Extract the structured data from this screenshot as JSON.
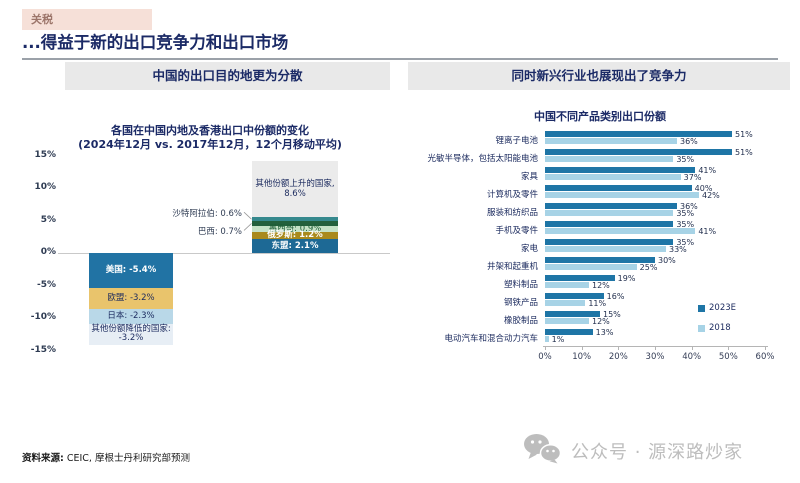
{
  "page": {
    "tag": "关税",
    "title": "...得益于新的出口竞争力和出口市场",
    "source_label": "资料来源:",
    "source_text": " CEIC, 摩根士丹利研究部预测",
    "watermark": "公众号 · 源深路炒家"
  },
  "theme": {
    "navy": "#1b2a66",
    "tag_bg": "#f6e0d8",
    "tag_text": "#9c756a",
    "panel_header_bg": "#e9e9e9",
    "dark_blue": "#1e75a6",
    "light_blue": "#a7d3e6",
    "watermark_gray": "#bdbdbd"
  },
  "left_panel": {
    "header": "中国的出口目的地更为分散"
  },
  "right_panel": {
    "header": "同时新兴行业也展现出了竞争力"
  },
  "chart_data": [
    {
      "type": "bar",
      "subtype": "diverging-stacked-column",
      "title": "各国在中国内地及香港出口中份额的变化",
      "subtitle": "(2024年12月 vs. 2017年12月，12个月移动平均)",
      "unit": "percentage-points",
      "ylim": [
        -15,
        15
      ],
      "yticks": [
        "15%",
        "10%",
        "5%",
        "0%",
        "-5%",
        "-10%",
        "-15%"
      ],
      "grid": "zero-line-only",
      "bars": [
        {
          "name": "share-declining",
          "direction": "down",
          "segments": [
            {
              "label": "美国: -5.4%",
              "value": -5.4,
              "color": "#2173a4",
              "text_color": "#ffffff",
              "bold": true
            },
            {
              "label": "欧盟: -3.2%",
              "value": -3.2,
              "color": "#e9c46c",
              "text_color": "#1b2a5e",
              "bold": false
            },
            {
              "label": "日本: -2.3%",
              "value": -2.3,
              "color": "#b9d8e8",
              "text_color": "#1b2a5e",
              "bold": false
            },
            {
              "label": "其他份额降低的国家: -3.2%",
              "value": -3.2,
              "color": "#e7eef5",
              "text_color": "#1b2a5e",
              "bold": false
            }
          ]
        },
        {
          "name": "share-rising",
          "direction": "up",
          "segments": [
            {
              "label": "其他份额上升的国家, 8.6%",
              "value": 8.6,
              "color": "#ebebeb",
              "text_color": "#1b2a5e",
              "bold": false
            },
            {
              "label": "沙特阿拉伯: 0.6%",
              "value": 0.6,
              "color": "#36898e",
              "callout": true
            },
            {
              "label": "巴西: 0.7%",
              "value": 0.7,
              "color": "#23603c",
              "callout": true
            },
            {
              "label": "墨西哥: 0.9%",
              "value": 0.9,
              "color": "#c5e2c6",
              "text_color": "#1d5c35",
              "bold": false
            },
            {
              "label": "俄罗斯: 1.2%",
              "value": 1.2,
              "color": "#a98a1d",
              "text_color": "#ffffff",
              "bold": true
            },
            {
              "label": "东盟: 2.1%",
              "value": 2.1,
              "color": "#1d6995",
              "text_color": "#ffffff",
              "bold": true
            }
          ]
        }
      ]
    },
    {
      "type": "bar",
      "subtype": "grouped-horizontal",
      "title": "中国不同产品类别出口份额",
      "categories": [
        "锂离子电池",
        "光敏半导体，包括太阳能电池",
        "家具",
        "计算机及零件",
        "服装和纺织品",
        "手机及零件",
        "家电",
        "井架和起重机",
        "塑料制品",
        "钢铁产品",
        "橡胶制品",
        "电动汽车和混合动力汽车"
      ],
      "series": [
        {
          "name": "2023E",
          "color": "#1e75a6",
          "values": [
            51,
            51,
            41,
            40,
            36,
            35,
            35,
            30,
            19,
            16,
            15,
            13
          ]
        },
        {
          "name": "2018",
          "color": "#a7d3e6",
          "values": [
            36,
            35,
            37,
            42,
            35,
            41,
            33,
            25,
            12,
            11,
            12,
            1
          ]
        }
      ],
      "xlim": [
        0,
        60
      ],
      "xticks": [
        "0%",
        "10%",
        "20%",
        "30%",
        "40%",
        "50%",
        "60%"
      ],
      "value_labels": true,
      "legend_position": "right-lower"
    }
  ]
}
